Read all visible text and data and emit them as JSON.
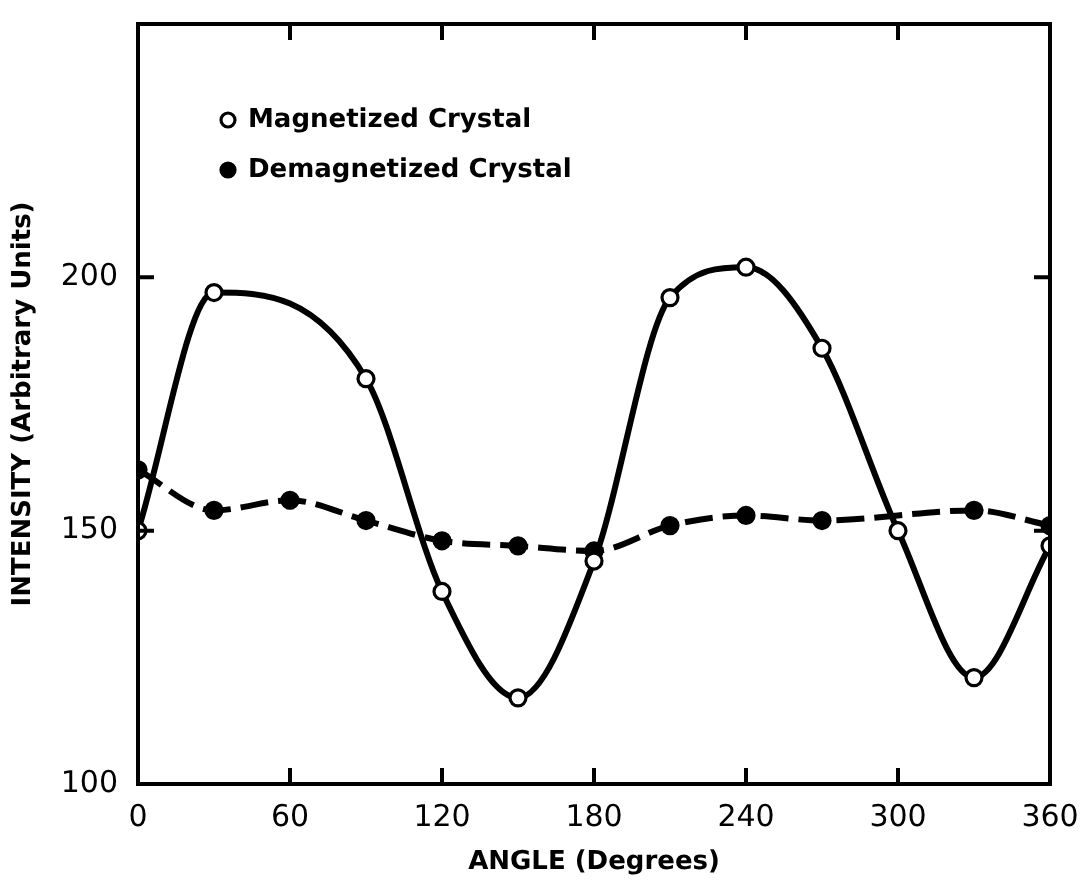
{
  "chart_data": {
    "type": "line",
    "xlabel": "ANGLE (Degrees)",
    "ylabel": "INTENSITY (Arbitrary Units)",
    "xlim": [
      0,
      360
    ],
    "xticks": [
      0,
      60,
      120,
      180,
      240,
      300,
      360
    ],
    "ylim": [
      100,
      250
    ],
    "yticks": [
      100,
      150,
      200,
      {
        "value": 250,
        "label": null
      }
    ],
    "grid": false,
    "legend": "top left",
    "series": [
      {
        "name": "Magnetized Crystal",
        "color": "#000000",
        "marker": "circle",
        "line_style": "solid",
        "x": [
          0,
          30,
          90,
          120,
          150,
          180,
          210,
          240,
          270,
          300,
          330,
          360
        ],
        "values": [
          150,
          197,
          180,
          138,
          117,
          144,
          196,
          202,
          186,
          150,
          121,
          147
        ]
      },
      {
        "name": "Demagnetized Crystal",
        "color": "#000000",
        "marker": "circle",
        "line_style": "dashed",
        "x": [
          0,
          30,
          60,
          90,
          120,
          150,
          180,
          210,
          240,
          270,
          330,
          360
        ],
        "values": [
          162,
          154,
          156,
          152,
          148,
          147,
          146,
          151,
          153,
          152,
          154,
          151
        ]
      }
    ]
  }
}
